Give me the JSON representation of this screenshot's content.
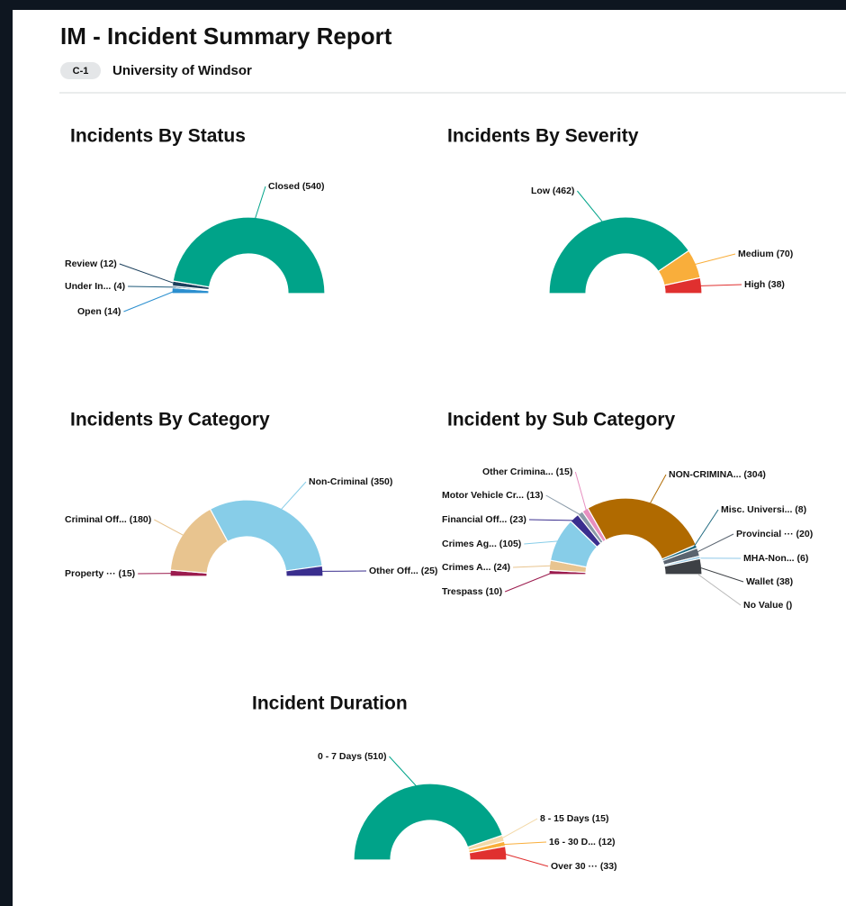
{
  "header": {
    "title": "IM - Incident Summary Report",
    "badge": "C-1",
    "organization": "University of Windsor"
  },
  "chart_data": [
    {
      "type": "pie",
      "title": "Incidents By Status",
      "values": [
        14,
        4,
        12,
        540
      ],
      "value_labels": [
        "Open (14)",
        "Under In... (4)",
        "Review (12)",
        "Closed (540)"
      ],
      "colors": [
        "#2b8fcf",
        "#1f5a7a",
        "#1b3f5c",
        "#00a389"
      ]
    },
    {
      "type": "pie",
      "title": "Incidents By Severity",
      "values": [
        462,
        70,
        38
      ],
      "value_labels": [
        "Low (462)",
        "Medium (70)",
        "High (38)"
      ],
      "colors": [
        "#00a389",
        "#f9ae3b",
        "#e0302f"
      ]
    },
    {
      "type": "pie",
      "title": "Incidents By Category",
      "values": [
        15,
        180,
        350,
        25
      ],
      "value_labels": [
        "Property ··· (15)",
        "Criminal Off... (180)",
        "Non-Criminal (350)",
        "Other Off... (25)"
      ],
      "colors": [
        "#9b1b4e",
        "#e8c48f",
        "#87cde8",
        "#3a2e8e"
      ]
    },
    {
      "type": "pie",
      "title": "Incident by Sub Category",
      "values": [
        10,
        24,
        105,
        23,
        13,
        15,
        304,
        8,
        20,
        6,
        38,
        null
      ],
      "value_labels": [
        "Trespass (10)",
        "Crimes A... (24)",
        "Crimes Ag... (105)",
        "Financial Off... (23)",
        "Motor Vehicle Cr... (13)",
        "Other Crimina... (15)",
        "NON-CRIMINA... (304)",
        "Misc. Universi... (8)",
        "Provincial ··· (20)",
        "MHA-Non... (6)",
        "Wallet (38)",
        "No Value ()"
      ],
      "colors": [
        "#9b1b4e",
        "#e8c48f",
        "#87cde8",
        "#3a2e8e",
        "#8a9aa8",
        "#e78fc0",
        "#b06a00",
        "#1f6a80",
        "#5a6470",
        "#8fc8e8",
        "#3d4045",
        "#b8b8b8"
      ]
    },
    {
      "type": "pie",
      "title": "Incident Duration",
      "values": [
        510,
        15,
        12,
        33
      ],
      "value_labels": [
        "0 - 7 Days (510)",
        "8 - 15 Days (15)",
        "16 - 30 D... (12)",
        "Over 30 ··· (33)"
      ],
      "colors": [
        "#00a389",
        "#f3d9a8",
        "#f9ae3b",
        "#e0302f"
      ]
    }
  ]
}
